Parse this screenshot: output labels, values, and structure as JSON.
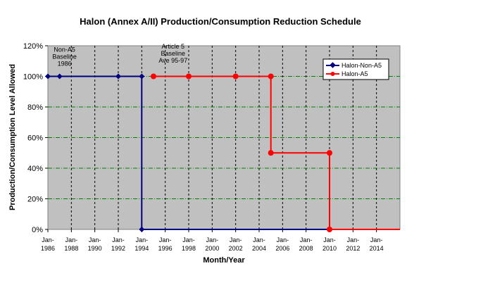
{
  "chart_data": {
    "type": "line",
    "title": "Halon (Annex A/II) Production/Consumption Reduction Schedule",
    "xlabel": "Month/Year",
    "ylabel": "Production/Consumption Level Allowed",
    "y_unit": "percent",
    "ylim": [
      0,
      120
    ],
    "y_ticks": [
      0,
      20,
      40,
      60,
      80,
      100,
      120
    ],
    "y_tick_labels": [
      "0%",
      "20%",
      "40%",
      "60%",
      "80%",
      "100%",
      "120%"
    ],
    "xlim": [
      "1986-01",
      "2016-01"
    ],
    "x_ticks": [
      "1986-01",
      "1988-01",
      "1990-01",
      "1992-01",
      "1994-01",
      "1996-01",
      "1998-01",
      "2000-01",
      "2002-01",
      "2004-01",
      "2006-01",
      "2008-01",
      "2010-01",
      "2012-01",
      "2014-01"
    ],
    "x_tick_labels": [
      [
        "Jan-",
        "1986"
      ],
      [
        "Jan-",
        "1988"
      ],
      [
        "Jan-",
        "1990"
      ],
      [
        "Jan-",
        "1992"
      ],
      [
        "Jan-",
        "1994"
      ],
      [
        "Jan-",
        "1996"
      ],
      [
        "Jan-",
        "1998"
      ],
      [
        "Jan-",
        "2000"
      ],
      [
        "Jan-",
        "2002"
      ],
      [
        "Jan-",
        "2004"
      ],
      [
        "Jan-",
        "2006"
      ],
      [
        "Jan-",
        "2008"
      ],
      [
        "Jan-",
        "2010"
      ],
      [
        "Jan-",
        "2012"
      ],
      [
        "Jan-",
        "2014"
      ]
    ],
    "grid": {
      "horizontal": true,
      "vertical": true
    },
    "legend_position": "top-right",
    "series": [
      {
        "name": "Halon-Non-A5",
        "color": "#000080",
        "marker": "diamond",
        "points": [
          {
            "x": "1986-01",
            "y": 100,
            "marker": true
          },
          {
            "x": "1987-01",
            "y": 100,
            "marker": true
          },
          {
            "x": "1992-01",
            "y": 100,
            "marker": true
          },
          {
            "x": "1994-01",
            "y": 100,
            "marker": true
          },
          {
            "x": "1994-01",
            "y": 0,
            "marker": true
          },
          {
            "x": "2010-01",
            "y": 0,
            "marker": false
          }
        ]
      },
      {
        "name": "Halon-A5",
        "color": "#ff0000",
        "marker": "circle",
        "points": [
          {
            "x": "1995-01",
            "y": 100,
            "marker": true
          },
          {
            "x": "1998-01",
            "y": 100,
            "marker": true
          },
          {
            "x": "2002-01",
            "y": 100,
            "marker": true
          },
          {
            "x": "2005-01",
            "y": 100,
            "marker": true
          },
          {
            "x": "2005-01",
            "y": 50,
            "marker": true
          },
          {
            "x": "2010-01",
            "y": 50,
            "marker": true
          },
          {
            "x": "2010-01",
            "y": 0,
            "marker": true
          },
          {
            "x": "2016-01",
            "y": 0,
            "marker": false
          }
        ]
      }
    ],
    "annotations": [
      {
        "lines": [
          "Non-A5",
          "Baseline",
          "1986"
        ],
        "x": "1987-06",
        "y": 107
      },
      {
        "lines": [
          "Article 5",
          "Baseline",
          "Ave 95-97"
        ],
        "x": "1996-09",
        "y": 109
      }
    ]
  }
}
